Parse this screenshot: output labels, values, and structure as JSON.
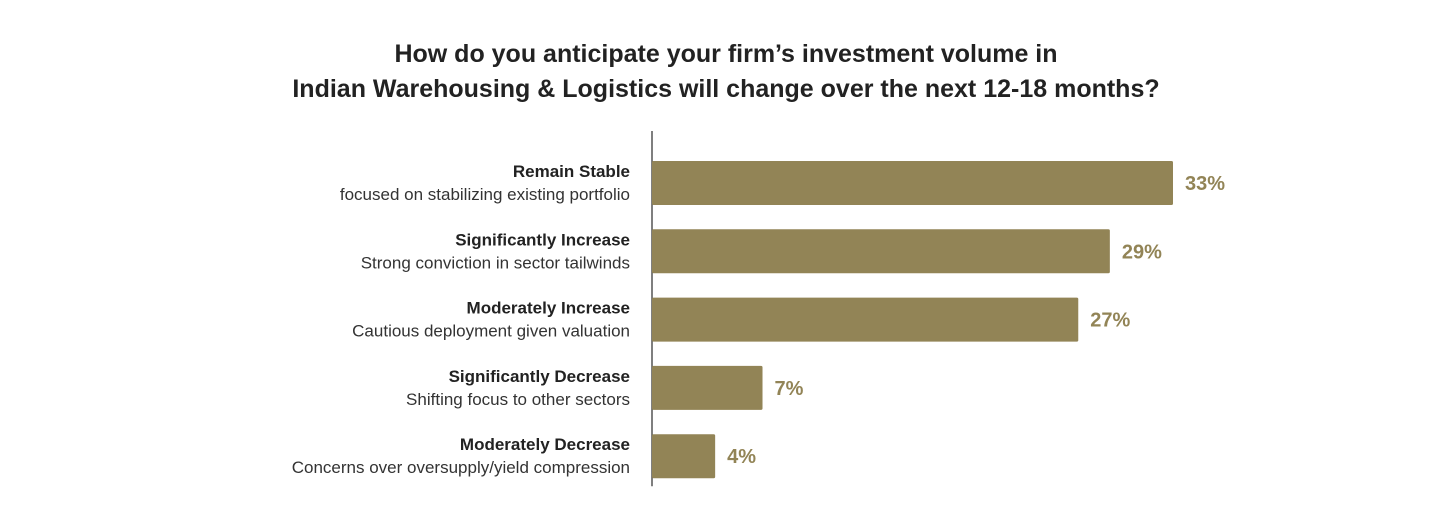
{
  "chart_data": {
    "type": "bar",
    "orientation": "horizontal",
    "title_lines": [
      "How do you anticipate your firm’s investment volume in",
      "Indian Warehousing & Logistics will change over the next 12-18 months?"
    ],
    "categories": [
      {
        "name": "Remain Stable",
        "description": "focused on stabilizing existing portfolio"
      },
      {
        "name": "Significantly Increase",
        "description": "Strong conviction in sector tailwinds"
      },
      {
        "name": "Moderately Increase",
        "description": "Cautious deployment given valuation"
      },
      {
        "name": "Significantly Decrease",
        "description": "Shifting focus to other sectors"
      },
      {
        "name": "Moderately Decrease",
        "description": "Concerns over oversupply/yield compression"
      }
    ],
    "values": [
      33,
      29,
      27,
      7,
      4
    ],
    "value_labels": [
      "33%",
      "29%",
      "27%",
      "7%",
      "4%"
    ],
    "xlim": [
      0,
      33
    ],
    "grid": false,
    "legend": "none",
    "colors": {
      "bar": "#928456",
      "label": "#928456",
      "axis": "#555555"
    }
  }
}
